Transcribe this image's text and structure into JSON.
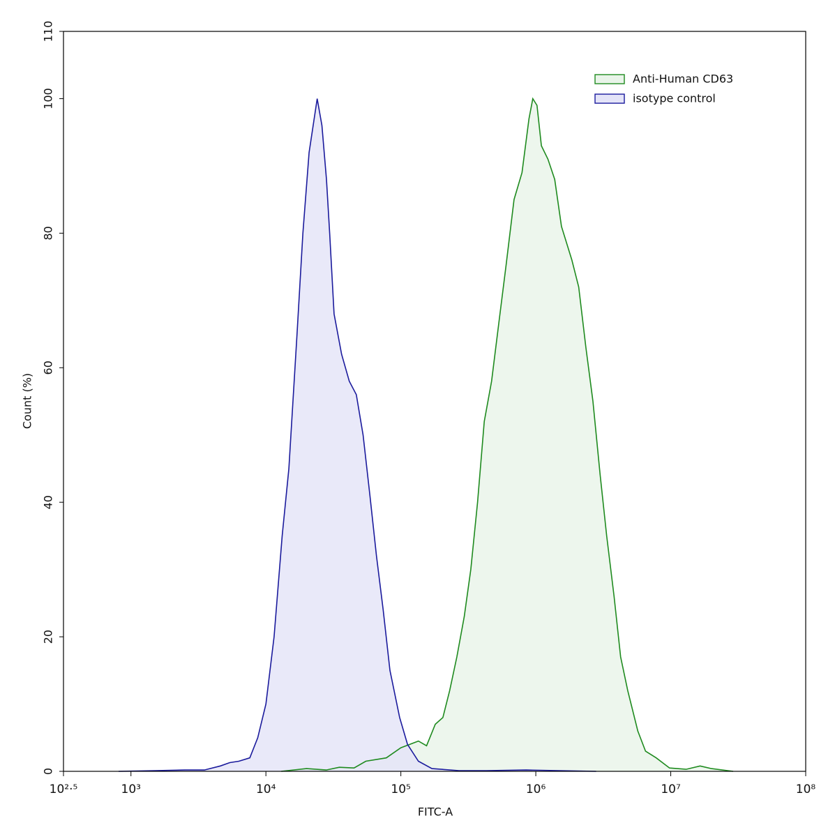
{
  "chart_data": {
    "type": "histogram-overlay",
    "xlabel": "FITC-A",
    "ylabel": "Count  (%)",
    "xscale": "log",
    "xlim": [
      316.228,
      100000000
    ],
    "ylim": [
      0,
      110
    ],
    "xticks": [
      {
        "value": 316.228,
        "label": "10²·⁵"
      },
      {
        "value": 1000,
        "label": "10³"
      },
      {
        "value": 10000,
        "label": "10⁴"
      },
      {
        "value": 100000,
        "label": "10⁵"
      },
      {
        "value": 1000000,
        "label": "10⁶"
      },
      {
        "value": 10000000,
        "label": "10⁷"
      },
      {
        "value": 100000000,
        "label": "10⁸"
      }
    ],
    "yticks": [
      0,
      20,
      40,
      60,
      80,
      100,
      110
    ],
    "legend": "upper right",
    "series": [
      {
        "name": "Anti-Human CD63",
        "color": "#1e8a1e",
        "fill": "#e9f4e9",
        "x": [
          13000,
          20000,
          28000,
          35000,
          45000,
          55000,
          78000,
          100000,
          135000,
          155000,
          180000,
          205000,
          230000,
          260000,
          295000,
          330000,
          370000,
          415000,
          470000,
          535000,
          600000,
          690000,
          790000,
          890000,
          950000,
          1020000,
          1100000,
          1230000,
          1380000,
          1550000,
          1850000,
          2080000,
          2350000,
          2650000,
          3000000,
          3350000,
          3800000,
          4250000,
          4800000,
          5700000,
          6500000,
          7800000,
          9800000,
          13000000,
          16500000,
          20000000,
          29000000
        ],
        "values": [
          0,
          0.4,
          0.2,
          0.6,
          0.5,
          1.5,
          2,
          3.5,
          4.5,
          3.8,
          7,
          8,
          12,
          17,
          23,
          30,
          40,
          52,
          58,
          67,
          75,
          85,
          89,
          97,
          100,
          99,
          93,
          91,
          88,
          81,
          76,
          72,
          63,
          55,
          44,
          35,
          26,
          17,
          12,
          6,
          3,
          2,
          0.5,
          0.3,
          0.8,
          0.4,
          0
        ]
      },
      {
        "name": "isotype control",
        "color": "#1a1a9c",
        "fill": "#e4e4f8",
        "x": [
          810,
          1500,
          2500,
          3500,
          4600,
          5400,
          6300,
          7600,
          8700,
          10000,
          11500,
          13200,
          14800,
          17000,
          18800,
          20900,
          24000,
          26000,
          28100,
          29700,
          32000,
          36400,
          41500,
          46800,
          52500,
          59000,
          66000,
          74000,
          83000,
          98000,
          112000,
          135000,
          170000,
          270000,
          430000,
          850000,
          2800000
        ],
        "values": [
          0,
          0.1,
          0.2,
          0.2,
          0.8,
          1.3,
          1.5,
          2,
          5,
          10,
          20,
          35,
          45,
          65,
          80,
          92,
          100,
          96,
          88,
          80,
          68,
          62,
          58,
          56,
          50,
          41,
          32,
          24,
          15,
          8,
          4,
          1.5,
          0.4,
          0.1,
          0.1,
          0.2,
          0
        ]
      }
    ]
  }
}
